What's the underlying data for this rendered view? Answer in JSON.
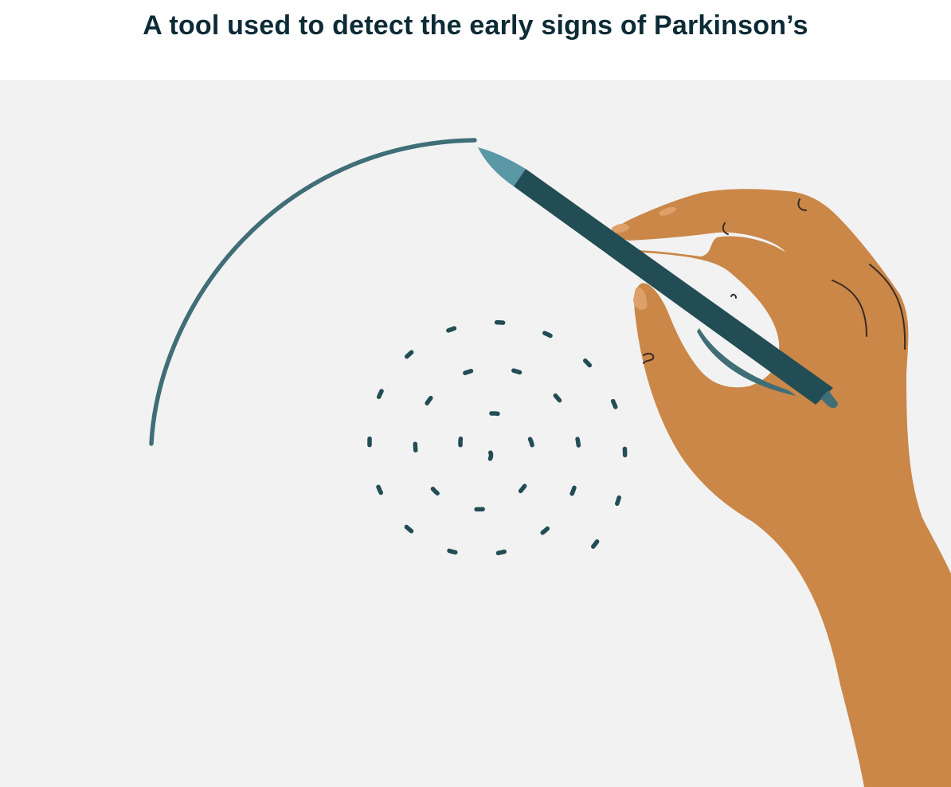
{
  "title": "A tool used to detect the early signs of Parkinson’s",
  "colors": {
    "title_text": "#0c2b36",
    "background": "#f2f2f2",
    "spiral_dash": "#224d55",
    "traced_line": "#3f6e76",
    "pen_body": "#224d55",
    "pen_tip": "#5a98a6",
    "pen_clip": "#3f6e76",
    "skin": "#ca8748",
    "skin_highlight": "#dea06b",
    "skin_line": "#3b2a22"
  },
  "illustration": {
    "spiral_icon": "dashed-spiral-icon",
    "traced_path_icon": "traced-spiral-line-icon",
    "hand_icon": "hand-icon",
    "pen_icon": "pen-icon"
  }
}
